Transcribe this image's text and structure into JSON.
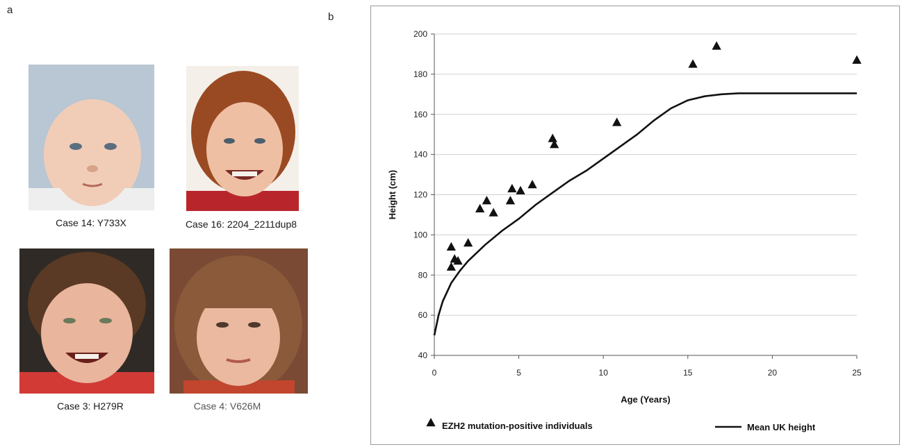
{
  "panels": {
    "a": "a",
    "b": "b"
  },
  "photos": [
    {
      "caption": "Case 14: Y733X",
      "skin": "#f1cdb8",
      "hair": "#c9b6a0",
      "bg": "#b9c6d3",
      "cloth": "#eeeeee"
    },
    {
      "caption": "Case 16: 2204_2211dup8",
      "skin": "#efbfa4",
      "hair": "#9a4a22",
      "bg": "#f4efe9",
      "cloth": "#b8262c"
    },
    {
      "caption": "Case 3: H279R",
      "skin": "#e9b59d",
      "hair": "#5a3a24",
      "bg": "#2f2a26",
      "cloth": "#d23a36"
    },
    {
      "caption": "Case 4: V626M",
      "skin": "#eab9a0",
      "hair": "#8a5a3a",
      "bg": "#7a4a34",
      "cloth": "#c2452e"
    }
  ],
  "chart_data": {
    "type": "scatter",
    "title": "",
    "xlabel": "Age (Years)",
    "ylabel": "Height (cm)",
    "xlim": [
      0,
      25
    ],
    "ylim": [
      40,
      200
    ],
    "x_ticks": [
      0,
      5,
      10,
      15,
      20,
      25
    ],
    "y_ticks": [
      40,
      60,
      80,
      100,
      120,
      140,
      160,
      180,
      200
    ],
    "grid": "horizontal",
    "legend_position": "bottom",
    "series": [
      {
        "name": "EZH2 mutation-positive individuals",
        "marker": "triangle",
        "points": [
          [
            1.0,
            84
          ],
          [
            1.0,
            94
          ],
          [
            1.2,
            88
          ],
          [
            1.4,
            87
          ],
          [
            2.0,
            96
          ],
          [
            2.7,
            113
          ],
          [
            3.1,
            117
          ],
          [
            3.5,
            111
          ],
          [
            4.5,
            117
          ],
          [
            4.6,
            123
          ],
          [
            5.1,
            122
          ],
          [
            5.8,
            125
          ],
          [
            7.0,
            148
          ],
          [
            7.1,
            145
          ],
          [
            10.8,
            156
          ],
          [
            15.3,
            185
          ],
          [
            16.7,
            194
          ],
          [
            25.0,
            187
          ]
        ]
      },
      {
        "name": "Mean UK height",
        "marker": "line",
        "points": [
          [
            0,
            50
          ],
          [
            0.25,
            60
          ],
          [
            0.5,
            67
          ],
          [
            1.0,
            76
          ],
          [
            1.5,
            82
          ],
          [
            2.0,
            87
          ],
          [
            3.0,
            95
          ],
          [
            4.0,
            102
          ],
          [
            5.0,
            108
          ],
          [
            6.0,
            115
          ],
          [
            7.0,
            121
          ],
          [
            8.0,
            127
          ],
          [
            9.0,
            132
          ],
          [
            10.0,
            138
          ],
          [
            11.0,
            144
          ],
          [
            12.0,
            150
          ],
          [
            13.0,
            157
          ],
          [
            14.0,
            163
          ],
          [
            15.0,
            167
          ],
          [
            16.0,
            169
          ],
          [
            17.0,
            170
          ],
          [
            18.0,
            170.5
          ],
          [
            20.0,
            170.5
          ],
          [
            25.0,
            170.5
          ]
        ]
      }
    ]
  }
}
